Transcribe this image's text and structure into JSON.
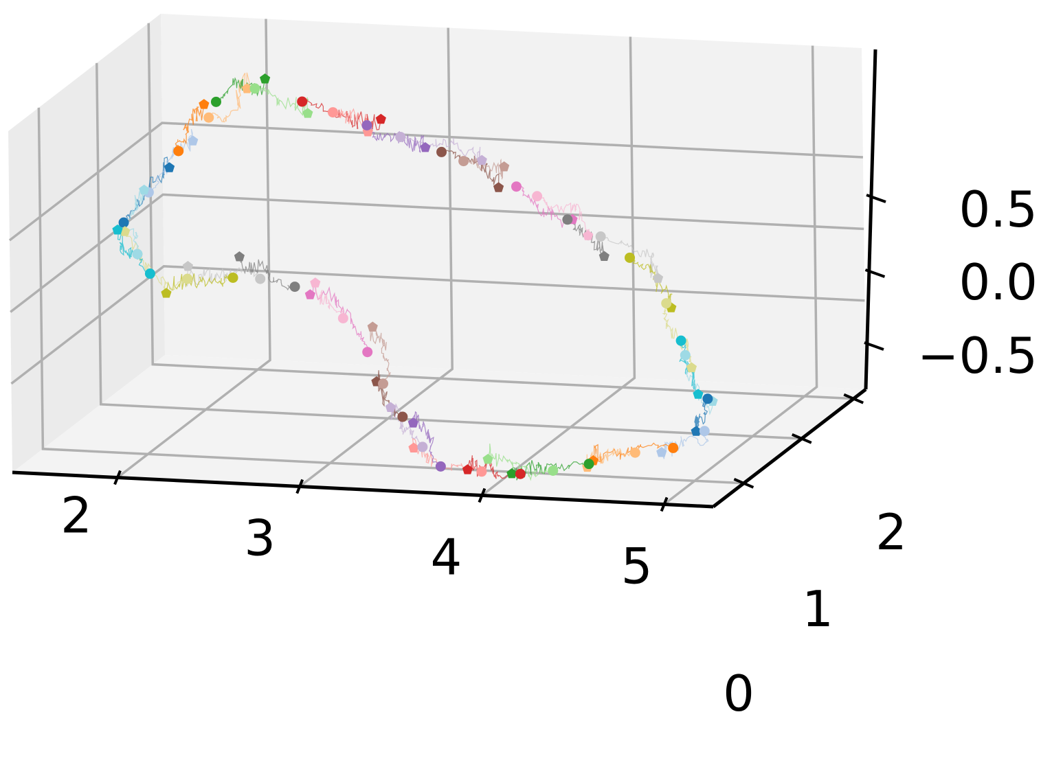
{
  "chart_data": {
    "type": "scatter",
    "projection": "3d",
    "title": "",
    "xlabel": "",
    "ylabel": "",
    "zlabel": "",
    "grid": true,
    "legend": "none",
    "x_ticks": [
      "2",
      "3",
      "4",
      "5"
    ],
    "y_ticks": [
      "0",
      "1",
      "2"
    ],
    "z_ticks": [
      "0.5",
      "0.0",
      "−0.5"
    ],
    "palette": [
      "#1f77b4",
      "#aec7e8",
      "#ff7f0e",
      "#ffbb78",
      "#2ca02c",
      "#98df8a",
      "#d62728",
      "#ff9896",
      "#9467bd",
      "#c5b0d5",
      "#8c564b",
      "#c49c94",
      "#e377c2",
      "#f7b6d2",
      "#7f7f7f",
      "#c7c7c7",
      "#bcbd22",
      "#dbdb8d",
      "#17becf",
      "#9edae5"
    ],
    "markers": {
      "start": "circle",
      "end": "pentagon"
    },
    "trajectories_per_color": 2,
    "path_shape": "rectangular loop with trajectories drifting along it"
  }
}
